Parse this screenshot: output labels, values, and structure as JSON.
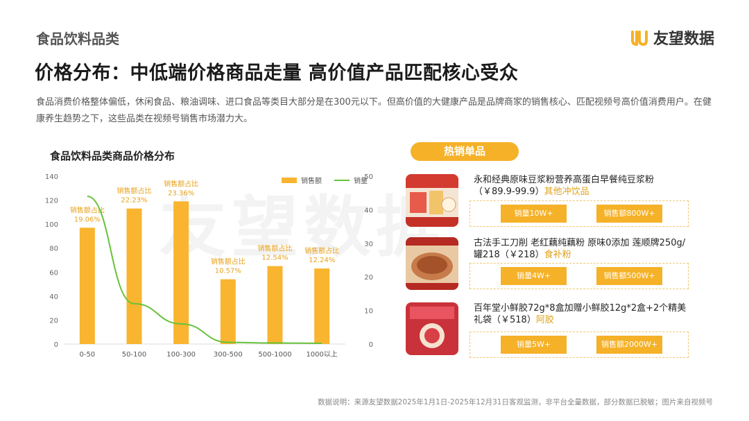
{
  "header": {
    "section_label": "食品饮料品类",
    "brand_name": "友望数据",
    "headline": "价格分布：中低端价格商品走量  高价值产品匹配核心受众",
    "intro": "食品消费价格整体偏低，休闲食品、粮油调味、进口食品等类目大部分是在300元以下。但高价值的大健康产品是品牌商家的销售核心、匹配视频号高价值消费用户。在健康养生趋势之下，这些品类在视频号销售市场潜力大。"
  },
  "watermark": {
    "text": "友望数据"
  },
  "chart_title": "食品饮料品类商品价格分布",
  "chart_data": {
    "type": "bar",
    "categories": [
      "0-50",
      "50-100",
      "100-300",
      "300-500",
      "500-1000",
      "1000以上"
    ],
    "series": [
      {
        "name": "销售额",
        "type": "bar",
        "axis": "left",
        "values": [
          97,
          113,
          119,
          54,
          65,
          63
        ]
      },
      {
        "name": "销量",
        "type": "line",
        "axis": "right",
        "values": [
          44,
          12,
          6,
          0.5,
          0.3,
          0.2
        ]
      }
    ],
    "bar_annotations": [
      {
        "label": "销售额占比",
        "value": "19.06%"
      },
      {
        "label": "销售额占比",
        "value": "22.23%"
      },
      {
        "label": "销售额占比",
        "value": "23.36%"
      },
      {
        "label": "销售额占比",
        "value": "10.57%"
      },
      {
        "label": "销售额占比",
        "value": "12.54%"
      },
      {
        "label": "销售额占比",
        "value": "12.24%"
      }
    ],
    "y_left_ticks": [
      0,
      20,
      40,
      60,
      80,
      100,
      120,
      140
    ],
    "y_right_ticks": [
      0,
      10,
      20,
      30,
      40,
      50
    ],
    "ylim_left": [
      0,
      140
    ],
    "ylim_right": [
      0,
      50
    ],
    "legend_position": "top-right",
    "grid": false,
    "colors": {
      "bar": "#f9b52f",
      "line": "#67c23a",
      "annotation": "#e8a21d"
    }
  },
  "hot_products": {
    "title": "热销单品",
    "items": [
      {
        "name": "永和经典原味豆浆粉营养高蛋白早餐纯豆浆粉",
        "price": "（￥89.9-99.9）",
        "category": "其他冲饮品",
        "sales_volume": "销量10W+",
        "sales_amount": "销售额800W+",
        "image_icon": "soy-milk-product-image"
      },
      {
        "name": "古法手工刀削 老红藕纯藕粉 原味0添加 莲顺牌250g/罐218",
        "price": "（￥218）",
        "category": "食补粉",
        "sales_volume": "销量4W+",
        "sales_amount": "销售额500W+",
        "image_icon": "lotus-root-powder-image"
      },
      {
        "name": "百年堂小鲜胶72g*8盒加赠小鲜胶12g*2盒+2个精美礼袋",
        "price": "（￥518）",
        "category": "阿胶",
        "sales_volume": "销量5W+",
        "sales_amount": "销售额2000W+",
        "image_icon": "ejiao-gift-box-image"
      }
    ]
  },
  "footnote": "数据说明：来源友望数据2025年1月1日-2025年12月31日客观监测，非平台全量数据，部分数据已脱敏；图片来自视频号",
  "colors": {
    "accent": "#f5b128",
    "category_text": "#e0a21a"
  }
}
